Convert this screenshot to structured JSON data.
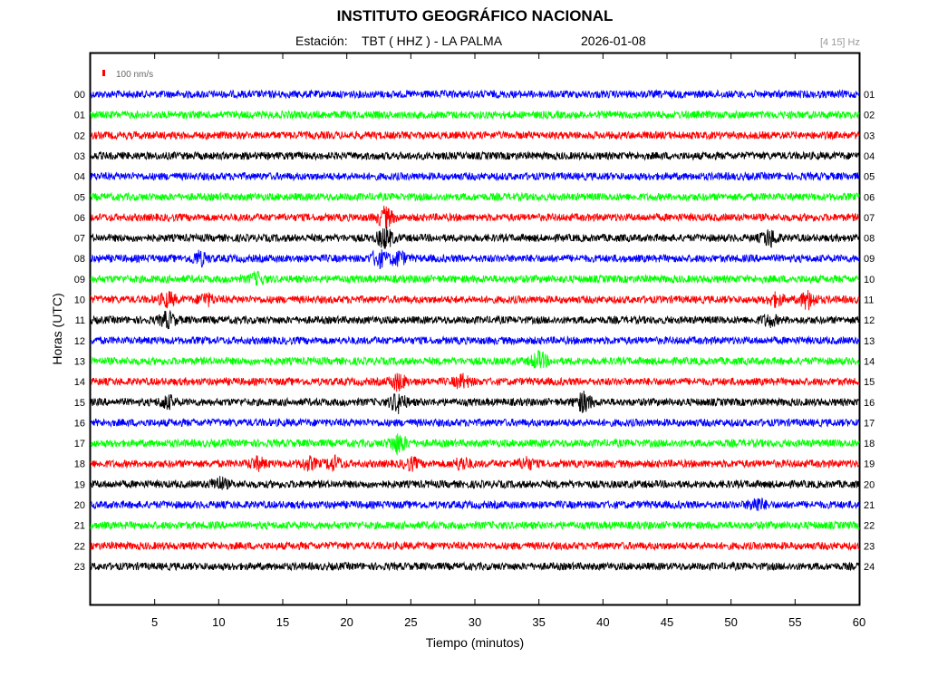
{
  "header": {
    "title": "INSTITUTO GEOGRÁFICO NACIONAL",
    "station_prefix": "Estación:",
    "station": "TBT ( HHZ ) - LA PALMA",
    "date": "2026-01-08",
    "band": "[4 15] Hz"
  },
  "chart_data": {
    "type": "line",
    "title": "INSTITUTO GEOGRÁFICO NACIONAL",
    "xlabel": "Tiempo (minutos)",
    "ylabel": "Horas (UTC)",
    "xlim": [
      0,
      60
    ],
    "x_ticks": [
      "5",
      "10",
      "15",
      "20",
      "25",
      "30",
      "35",
      "40",
      "45",
      "50",
      "55",
      "60"
    ],
    "scale_label": "100 nm/s",
    "left_labels": [
      "00",
      "01",
      "02",
      "03",
      "04",
      "05",
      "06",
      "07",
      "08",
      "09",
      "10",
      "11",
      "12",
      "13",
      "14",
      "15",
      "16",
      "17",
      "18",
      "19",
      "20",
      "21",
      "22",
      "23"
    ],
    "right_labels": [
      "01",
      "02",
      "03",
      "04",
      "05",
      "06",
      "07",
      "08",
      "09",
      "10",
      "11",
      "12",
      "13",
      "14",
      "15",
      "16",
      "17",
      "18",
      "19",
      "20",
      "21",
      "22",
      "23",
      "24"
    ],
    "trace_colors": [
      "#0000ff",
      "#00ff00",
      "#ff0000",
      "#000000"
    ],
    "events": [
      {
        "hour": 6,
        "minute": 23.0,
        "amplitude": 2.2
      },
      {
        "hour": 7,
        "minute": 23.0,
        "amplitude": 2.4
      },
      {
        "hour": 7,
        "minute": 53.0,
        "amplitude": 1.9
      },
      {
        "hour": 8,
        "minute": 8.5,
        "amplitude": 1.5
      },
      {
        "hour": 8,
        "minute": 22.5,
        "amplitude": 1.8
      },
      {
        "hour": 8,
        "minute": 24.0,
        "amplitude": 1.6
      },
      {
        "hour": 9,
        "minute": 13.0,
        "amplitude": 1.2
      },
      {
        "hour": 10,
        "minute": 6.0,
        "amplitude": 1.6
      },
      {
        "hour": 10,
        "minute": 9.0,
        "amplitude": 1.3
      },
      {
        "hour": 10,
        "minute": 53.5,
        "amplitude": 1.3
      },
      {
        "hour": 10,
        "minute": 56.0,
        "amplitude": 2.0
      },
      {
        "hour": 11,
        "minute": 6.0,
        "amplitude": 1.7
      },
      {
        "hour": 11,
        "minute": 53.0,
        "amplitude": 1.2
      },
      {
        "hour": 13,
        "minute": 35.0,
        "amplitude": 1.9
      },
      {
        "hour": 14,
        "minute": 24.0,
        "amplitude": 1.8
      },
      {
        "hour": 14,
        "minute": 29.0,
        "amplitude": 1.4
      },
      {
        "hour": 15,
        "minute": 6.0,
        "amplitude": 1.4
      },
      {
        "hour": 15,
        "minute": 24.0,
        "amplitude": 2.2
      },
      {
        "hour": 15,
        "minute": 38.5,
        "amplitude": 2.2
      },
      {
        "hour": 17,
        "minute": 24.0,
        "amplitude": 2.3
      },
      {
        "hour": 18,
        "minute": 13.0,
        "amplitude": 1.3
      },
      {
        "hour": 18,
        "minute": 17.0,
        "amplitude": 1.3
      },
      {
        "hour": 18,
        "minute": 19.0,
        "amplitude": 1.5
      },
      {
        "hour": 18,
        "minute": 25.0,
        "amplitude": 1.2
      },
      {
        "hour": 18,
        "minute": 29.0,
        "amplitude": 1.3
      },
      {
        "hour": 18,
        "minute": 34.0,
        "amplitude": 1.2
      },
      {
        "hour": 19,
        "minute": 10.0,
        "amplitude": 1.5
      },
      {
        "hour": 20,
        "minute": 52.0,
        "amplitude": 1.5
      }
    ]
  }
}
